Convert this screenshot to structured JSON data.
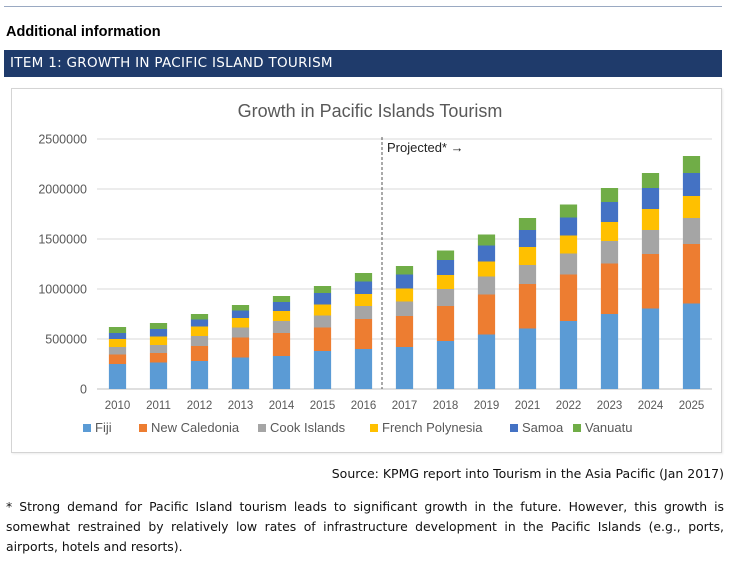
{
  "header": {
    "title": "Additional information"
  },
  "banner": {
    "label": "ITEM 1: GROWTH IN PACIFIC ISLAND TOURISM"
  },
  "chart_data": {
    "type": "bar",
    "stacked": true,
    "title": "Growth in Pacific Islands Tourism",
    "xlabel": "",
    "ylabel": "",
    "ylim": [
      0,
      2500000
    ],
    "yticks": [
      "0",
      "500000",
      "1000000",
      "1500000",
      "2000000",
      "2500000"
    ],
    "grid": true,
    "legend_position": "bottom",
    "annotation": "Projected* →",
    "projection_start_index": 7,
    "categories": [
      "2010",
      "2011",
      "2012",
      "2013",
      "2014",
      "2015",
      "2016",
      "2017",
      "2018",
      "2019",
      "2021",
      "2022",
      "2023",
      "2024",
      "2025"
    ],
    "series": [
      {
        "name": "Fiji",
        "color": "#5b9bd5",
        "values": [
          250000,
          265000,
          280000,
          315000,
          330000,
          380000,
          400000,
          420000,
          480000,
          545000,
          605000,
          680000,
          750000,
          805000,
          855000
        ]
      },
      {
        "name": "New Caledonia",
        "color": "#ed7d31",
        "values": [
          95000,
          95000,
          150000,
          200000,
          230000,
          235000,
          300000,
          310000,
          350000,
          400000,
          445000,
          465000,
          505000,
          545000,
          595000
        ]
      },
      {
        "name": "Cook Islands",
        "color": "#a5a5a5",
        "values": [
          75000,
          80000,
          100000,
          100000,
          120000,
          120000,
          130000,
          145000,
          170000,
          180000,
          190000,
          210000,
          225000,
          240000,
          260000
        ]
      },
      {
        "name": "French Polynesia",
        "color": "#ffc000",
        "values": [
          80000,
          85000,
          95000,
          95000,
          100000,
          110000,
          120000,
          130000,
          140000,
          150000,
          180000,
          180000,
          190000,
          210000,
          220000
        ]
      },
      {
        "name": "Samoa",
        "color": "#4472c4",
        "values": [
          60000,
          75000,
          70000,
          75000,
          90000,
          115000,
          125000,
          140000,
          150000,
          160000,
          170000,
          180000,
          200000,
          210000,
          230000
        ]
      },
      {
        "name": "Vanuatu",
        "color": "#70ad47",
        "values": [
          60000,
          60000,
          55000,
          55000,
          60000,
          70000,
          85000,
          85000,
          95000,
          110000,
          120000,
          130000,
          140000,
          150000,
          170000
        ]
      }
    ]
  },
  "source": {
    "text": "Source: KPMG report into Tourism in the Asia Pacific (Jan 2017)"
  },
  "note": {
    "text": "* Strong demand for Pacific Island tourism leads to significant growth in the future. However, this growth is somewhat restrained by relatively low rates of infrastructure development in the Pacific Islands (e.g., ports, airports, hotels and resorts)."
  }
}
